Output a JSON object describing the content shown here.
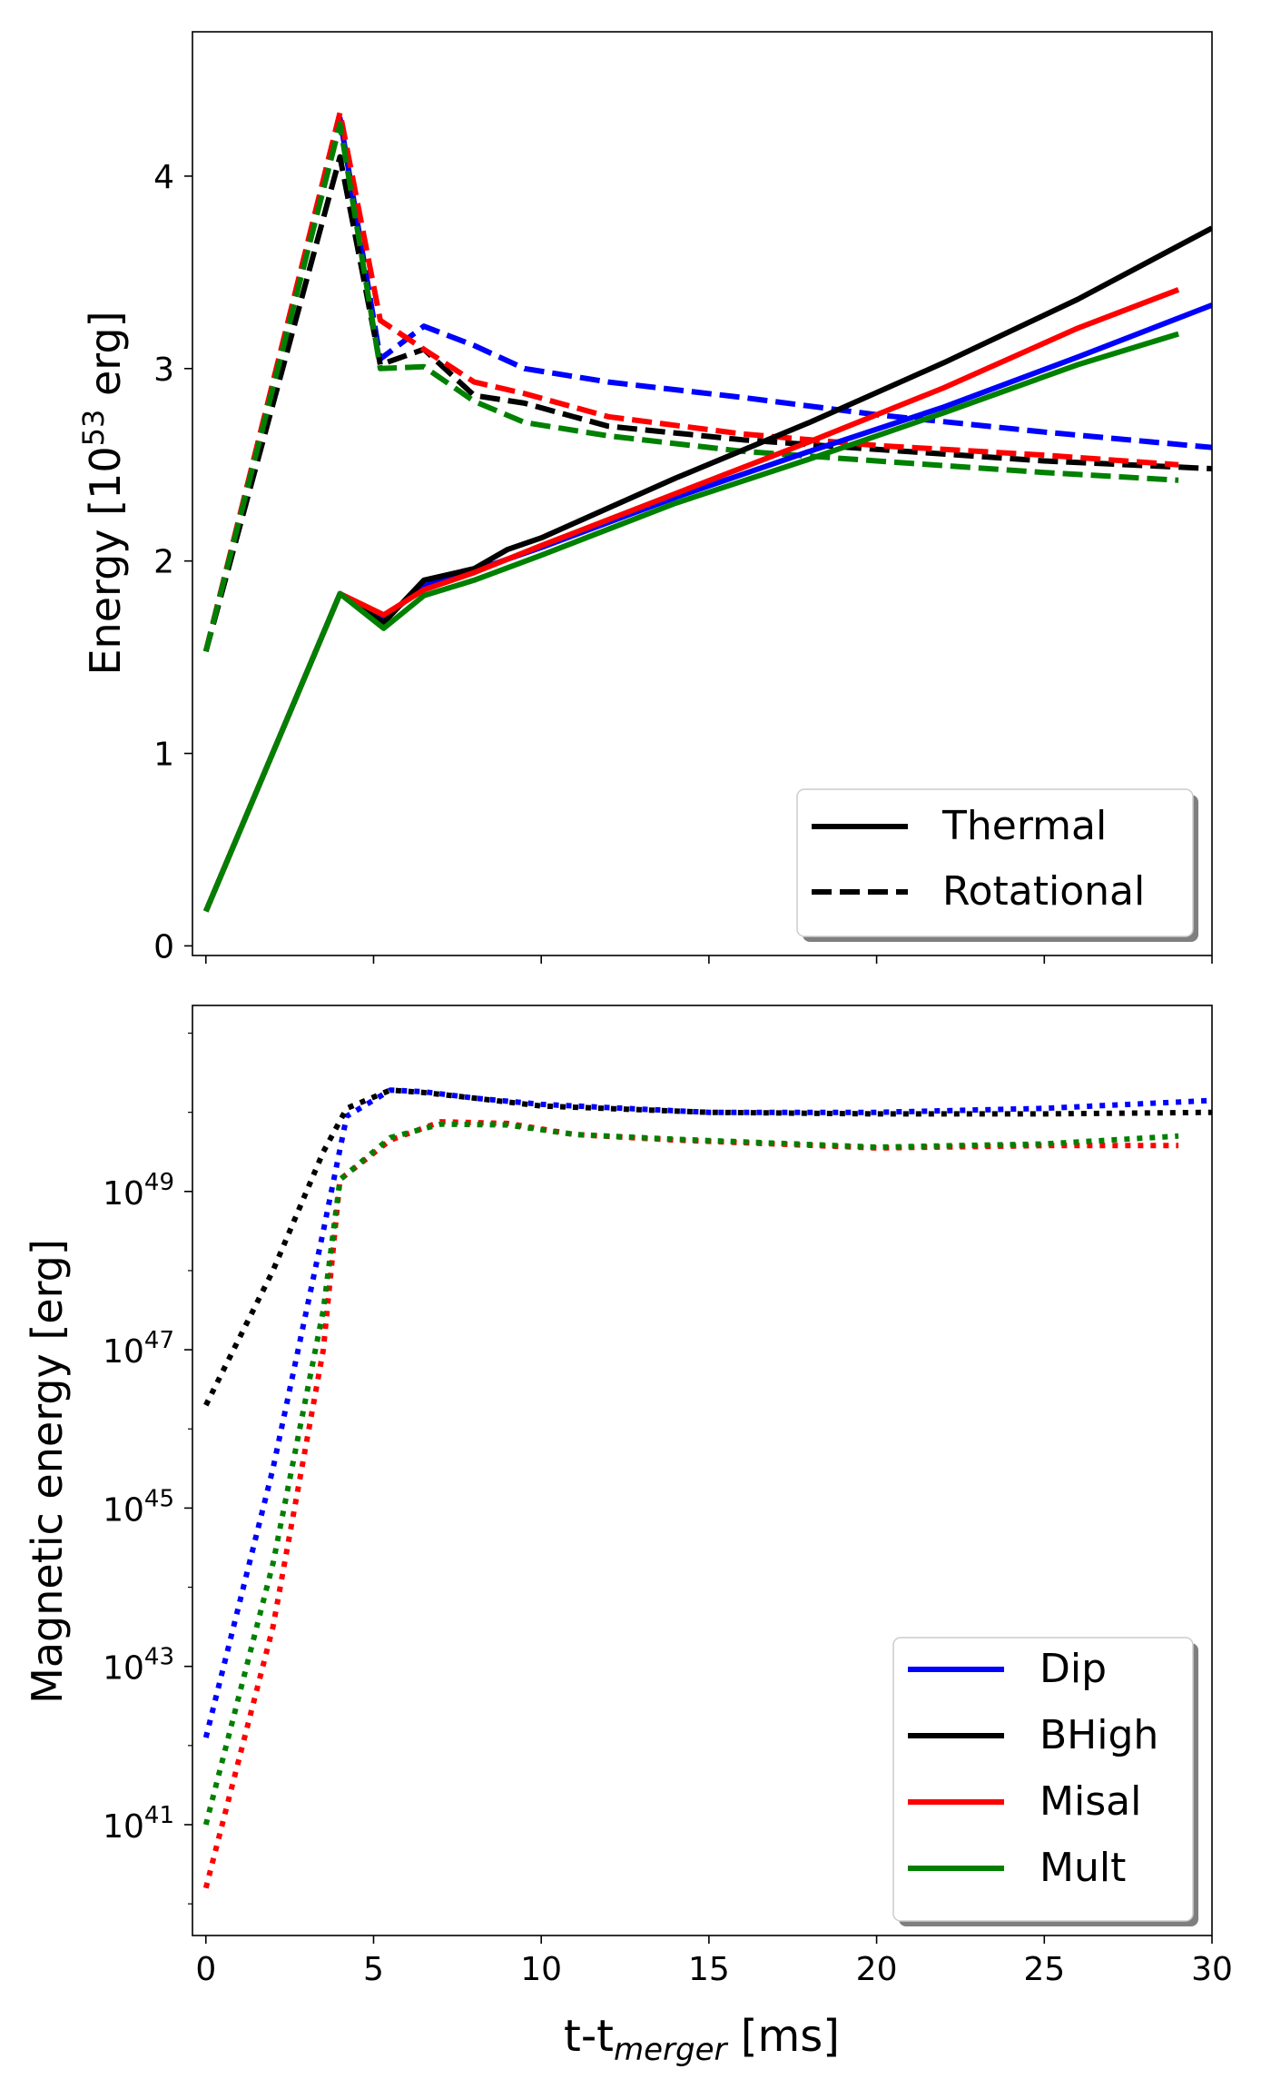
{
  "chart_data": [
    {
      "type": "line",
      "panel": "top",
      "xlabel": "",
      "ylabel": "Energy [10^53 erg]",
      "ylabel_parts": {
        "pre": "Energy [10",
        "sup": "53",
        "post": " erg]"
      },
      "xlim": [
        -0.4,
        30
      ],
      "ylim": [
        -0.05,
        4.75
      ],
      "xticks": [
        0,
        5,
        10,
        15,
        20,
        25,
        30
      ],
      "yticks": [
        0,
        1,
        2,
        3,
        4
      ],
      "ytick_labels": [
        "0",
        "1",
        "2",
        "3",
        "4"
      ],
      "legend": {
        "position": "lower-right",
        "entries": [
          {
            "label": "Thermal",
            "style": "solid",
            "color": "#000000"
          },
          {
            "label": "Rotational",
            "style": "dashed",
            "color": "#000000"
          }
        ]
      },
      "series": [
        {
          "name": "Dip Rotational",
          "color": "#0000ff",
          "style": "dashed",
          "x": [
            0,
            4,
            5.2,
            6.5,
            8,
            9.5,
            12,
            16,
            20,
            25,
            30
          ],
          "y": [
            1.53,
            4.3,
            3.05,
            3.22,
            3.12,
            3.0,
            2.93,
            2.85,
            2.76,
            2.67,
            2.59
          ]
        },
        {
          "name": "BHigh Rotational",
          "color": "#000000",
          "style": "dashed",
          "x": [
            0,
            4,
            5.2,
            6.5,
            8,
            9.5,
            12,
            16,
            20,
            25,
            30
          ],
          "y": [
            1.53,
            4.1,
            3.02,
            3.1,
            2.86,
            2.82,
            2.7,
            2.63,
            2.58,
            2.52,
            2.48
          ]
        },
        {
          "name": "Misal Rotational",
          "color": "#ff0000",
          "style": "dashed",
          "x": [
            0,
            4,
            5.2,
            6.5,
            8,
            9.5,
            12,
            16,
            20,
            25,
            29
          ],
          "y": [
            1.53,
            4.33,
            3.25,
            3.1,
            2.93,
            2.87,
            2.75,
            2.66,
            2.6,
            2.55,
            2.5
          ]
        },
        {
          "name": "Mult Rotational",
          "color": "#008000",
          "style": "dashed",
          "x": [
            0,
            4,
            5.2,
            6.5,
            8,
            9.5,
            12,
            16,
            20,
            25,
            29
          ],
          "y": [
            1.53,
            4.27,
            3.0,
            3.01,
            2.83,
            2.72,
            2.65,
            2.57,
            2.52,
            2.46,
            2.42
          ]
        },
        {
          "name": "Dip Thermal",
          "color": "#0000ff",
          "style": "solid",
          "x": [
            0,
            4,
            5.3,
            6.5,
            8,
            10,
            14,
            18,
            22,
            26,
            30
          ],
          "y": [
            0.18,
            1.83,
            1.7,
            1.87,
            1.95,
            2.07,
            2.33,
            2.57,
            2.8,
            3.06,
            3.33
          ]
        },
        {
          "name": "BHigh Thermal",
          "color": "#000000",
          "style": "solid",
          "x": [
            0,
            4,
            5.3,
            6.5,
            8,
            9,
            10,
            14,
            18,
            22,
            26,
            30
          ],
          "y": [
            0.18,
            1.83,
            1.68,
            1.9,
            1.96,
            2.06,
            2.12,
            2.43,
            2.72,
            3.03,
            3.36,
            3.73
          ]
        },
        {
          "name": "Misal Thermal",
          "color": "#ff0000",
          "style": "solid",
          "x": [
            0,
            4,
            5.3,
            6.5,
            8,
            10,
            14,
            18,
            22,
            26,
            29
          ],
          "y": [
            0.18,
            1.83,
            1.72,
            1.85,
            1.94,
            2.08,
            2.35,
            2.62,
            2.9,
            3.21,
            3.41
          ]
        },
        {
          "name": "Mult Thermal",
          "color": "#008000",
          "style": "solid",
          "x": [
            0,
            4,
            5.3,
            6.5,
            8,
            10,
            14,
            18,
            22,
            26,
            29
          ],
          "y": [
            0.18,
            1.83,
            1.65,
            1.82,
            1.9,
            2.03,
            2.3,
            2.53,
            2.77,
            3.02,
            3.18
          ]
        }
      ]
    },
    {
      "type": "line",
      "panel": "bottom",
      "yscale": "log",
      "xlabel": "t-t_merger [ms]",
      "xlabel_parts": {
        "pre": "t-t",
        "sub": "merger",
        "post": " [ms]"
      },
      "ylabel": "Magnetic energy [erg]",
      "xlim": [
        -0.4,
        30
      ],
      "ylim_log10": [
        39.6,
        51.35
      ],
      "xticks": [
        0,
        5,
        10,
        15,
        20,
        25,
        30
      ],
      "xtick_labels": [
        "0",
        "5",
        "10",
        "15",
        "20",
        "25",
        "30"
      ],
      "yticks_log10": [
        41,
        43,
        45,
        47,
        49
      ],
      "ytick_labels": [
        {
          "base": "10",
          "exp": "41"
        },
        {
          "base": "10",
          "exp": "43"
        },
        {
          "base": "10",
          "exp": "45"
        },
        {
          "base": "10",
          "exp": "47"
        },
        {
          "base": "10",
          "exp": "49"
        }
      ],
      "legend": {
        "position": "lower-right",
        "entries": [
          {
            "label": "Dip",
            "style": "solid",
            "color": "#0000ff"
          },
          {
            "label": "BHigh",
            "style": "solid",
            "color": "#000000"
          },
          {
            "label": "Misal",
            "style": "solid",
            "color": "#ff0000"
          },
          {
            "label": "Mult",
            "style": "solid",
            "color": "#008000"
          }
        ]
      },
      "series": [
        {
          "name": "Dip",
          "color": "#0000ff",
          "style": "dotted",
          "x": [
            0,
            2,
            3.5,
            4.2,
            5.5,
            6.5,
            8,
            10,
            15,
            20,
            25,
            30
          ],
          "y_log10": [
            42.1,
            45.5,
            48.5,
            49.95,
            50.28,
            50.26,
            50.18,
            50.1,
            50.0,
            50.0,
            50.05,
            50.15
          ]
        },
        {
          "name": "BHigh",
          "color": "#000000",
          "style": "dotted",
          "x": [
            0,
            2,
            3.5,
            4.2,
            5.5,
            6.5,
            8,
            10,
            15,
            20,
            25,
            30
          ],
          "y_log10": [
            46.3,
            48.0,
            49.5,
            50.05,
            50.28,
            50.25,
            50.18,
            50.08,
            50.0,
            49.98,
            49.98,
            50.0
          ]
        },
        {
          "name": "Misal",
          "color": "#ff0000",
          "style": "dotted",
          "x": [
            0,
            2,
            3.5,
            4,
            5.5,
            7,
            9,
            11,
            14,
            20,
            25,
            29
          ],
          "y_log10": [
            40.2,
            43.5,
            47.0,
            49.15,
            49.65,
            49.88,
            49.86,
            49.72,
            49.65,
            49.55,
            49.58,
            49.58
          ]
        },
        {
          "name": "Mult",
          "color": "#008000",
          "style": "dotted",
          "x": [
            0,
            2,
            3.5,
            4,
            5.5,
            7,
            9,
            11,
            14,
            20,
            25,
            29
          ],
          "y_log10": [
            41.0,
            44.3,
            47.5,
            49.15,
            49.68,
            49.85,
            49.84,
            49.72,
            49.66,
            49.56,
            49.6,
            49.7
          ]
        }
      ]
    }
  ]
}
